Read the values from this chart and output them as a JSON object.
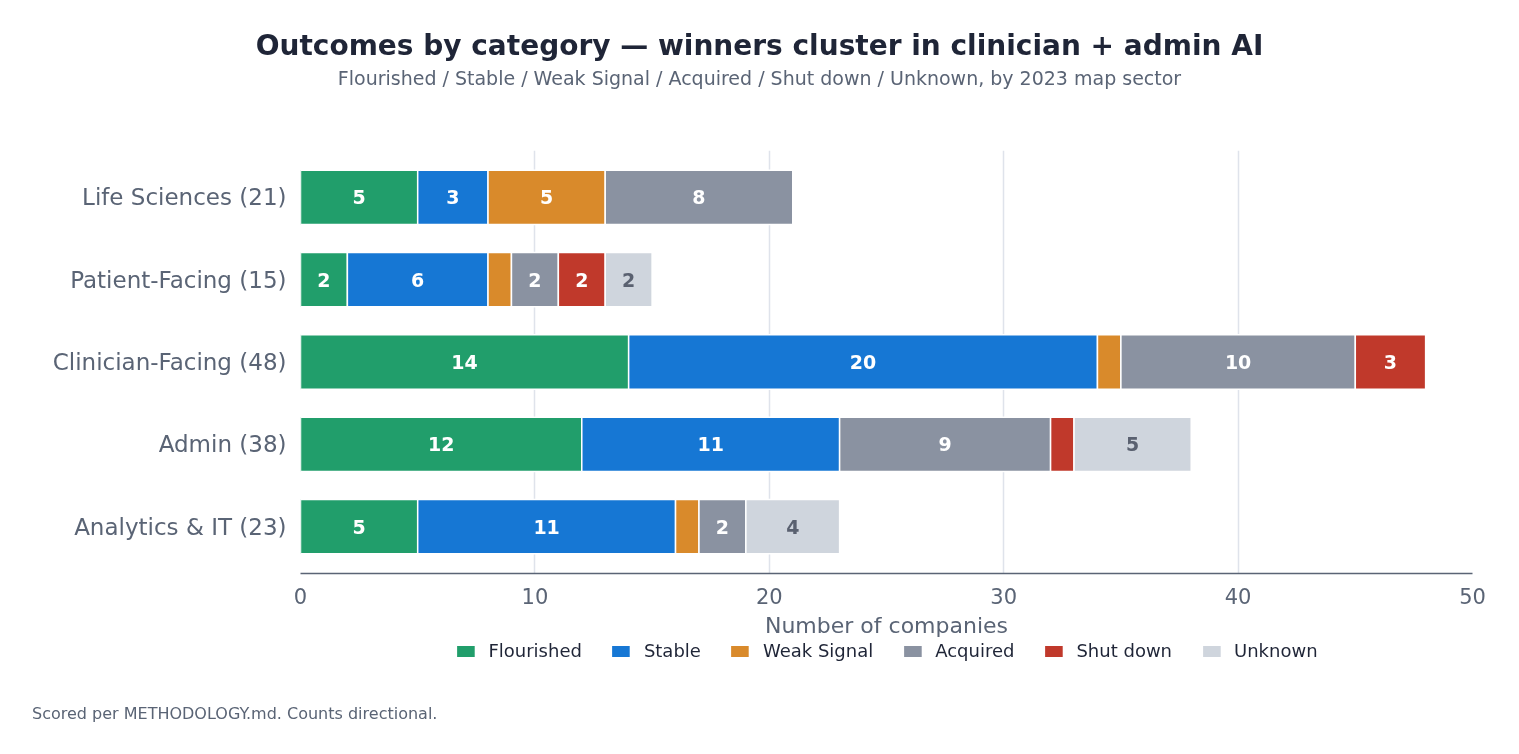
{
  "chart_data": {
    "type": "bar",
    "orientation": "horizontal",
    "stacked": true,
    "title": "Outcomes by category — winners cluster in clinician + admin AI",
    "subtitle": "Flourished / Stable / Weak Signal / Acquired / Shut down / Unknown, by 2023 map sector",
    "xlabel": "Number of companies",
    "categories": [
      "Life Sciences (21)",
      "Patient-Facing (15)",
      "Clinician-Facing (48)",
      "Admin (38)",
      "Analytics & IT (23)"
    ],
    "series": [
      {
        "name": "Flourished",
        "color": "#219e6b",
        "values": [
          5,
          2,
          14,
          12,
          5
        ],
        "value_labels": [
          "5",
          "2",
          "14",
          "12",
          "5"
        ]
      },
      {
        "name": "Stable",
        "color": "#1677d4",
        "values": [
          3,
          6,
          20,
          11,
          11
        ],
        "value_labels": [
          "3",
          "6",
          "20",
          "11",
          "11"
        ]
      },
      {
        "name": "Weak Signal",
        "color": "#d98a2b",
        "values": [
          5,
          1,
          1,
          null,
          1
        ],
        "value_labels": [
          "5",
          null,
          null,
          null,
          null
        ]
      },
      {
        "name": "Acquired",
        "color": "#8a92a1",
        "values": [
          8,
          2,
          10,
          9,
          2
        ],
        "value_labels": [
          "8",
          "2",
          "10",
          "9",
          "2"
        ]
      },
      {
        "name": "Shut down",
        "color": "#c0392b",
        "values": [
          null,
          2,
          3,
          1,
          null
        ],
        "value_labels": [
          null,
          "2",
          "3",
          null,
          null
        ]
      },
      {
        "name": "Unknown",
        "color": "#cfd5dd",
        "values": [
          null,
          2,
          null,
          5,
          4
        ],
        "value_labels": [
          null,
          "2",
          null,
          "5",
          "4"
        ]
      }
    ],
    "xlim": [
      0,
      50
    ],
    "xticks": [
      0,
      10,
      20,
      30,
      40,
      50
    ],
    "grid": "x",
    "legend": "bottom",
    "annotations": [
      "Scored per METHODOLOGY.md. Counts directional."
    ]
  }
}
